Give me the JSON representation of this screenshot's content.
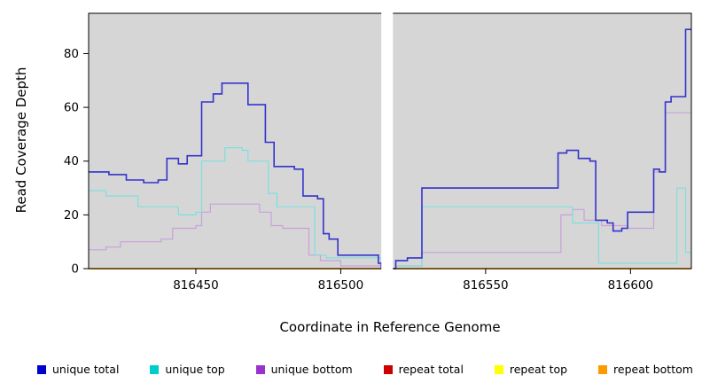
{
  "chart_data": {
    "type": "line",
    "subtype": "step-coverage-plot",
    "title": "",
    "xlabel": "Coordinate in Reference Genome",
    "ylabel": "Read Coverage Depth",
    "xlim": [
      816413,
      816621
    ],
    "ylim": [
      0,
      95
    ],
    "x_ticks": [
      816450,
      816500,
      816550,
      816600
    ],
    "y_ticks": [
      0,
      20,
      40,
      60,
      80
    ],
    "grid": false,
    "panel_bg": "#d6d6d6",
    "gap": {
      "x_start": 816514,
      "x_end": 816518
    },
    "series": [
      {
        "name": "repeat total",
        "color": "#cc0000",
        "width": 1.2,
        "steps": [
          [
            816413,
            0
          ]
        ]
      },
      {
        "name": "repeat top",
        "color": "#ffff00",
        "width": 1.2,
        "steps": [
          [
            816413,
            0
          ]
        ]
      },
      {
        "name": "repeat bottom",
        "color": "#ff9900",
        "width": 1.4,
        "steps": [
          [
            816413,
            0
          ]
        ]
      },
      {
        "name": "unique bottom",
        "color": "#c9a0dc",
        "width": 1.2,
        "steps": [
          [
            816413,
            7
          ],
          [
            816419,
            8
          ],
          [
            816424,
            10
          ],
          [
            816438,
            11
          ],
          [
            816442,
            15
          ],
          [
            816450,
            16
          ],
          [
            816452,
            21
          ],
          [
            816455,
            24
          ],
          [
            816472,
            21
          ],
          [
            816476,
            16
          ],
          [
            816480,
            15
          ],
          [
            816489,
            5
          ],
          [
            816493,
            3
          ],
          [
            816500,
            1
          ],
          [
            816514,
            0
          ],
          [
            816518,
            0
          ],
          [
            816519,
            1
          ],
          [
            816528,
            6
          ],
          [
            816576,
            20
          ],
          [
            816580,
            22
          ],
          [
            816584,
            18
          ],
          [
            816590,
            16
          ],
          [
            816599,
            15
          ],
          [
            816608,
            36
          ],
          [
            816612,
            58
          ]
        ]
      },
      {
        "name": "unique top",
        "color": "#7fdfdf",
        "width": 1.2,
        "steps": [
          [
            816413,
            29
          ],
          [
            816419,
            27
          ],
          [
            816430,
            23
          ],
          [
            816444,
            20
          ],
          [
            816450,
            21
          ],
          [
            816452,
            40
          ],
          [
            816460,
            45
          ],
          [
            816466,
            44
          ],
          [
            816468,
            40
          ],
          [
            816475,
            28
          ],
          [
            816478,
            23
          ],
          [
            816491,
            5
          ],
          [
            816495,
            4
          ],
          [
            816514,
            0
          ],
          [
            816518,
            0
          ],
          [
            816519,
            1
          ],
          [
            816528,
            23
          ],
          [
            816580,
            17
          ],
          [
            816589,
            2
          ],
          [
            816614,
            2
          ],
          [
            816616,
            30
          ],
          [
            816619,
            6
          ]
        ]
      },
      {
        "name": "unique total",
        "color": "#3333cc",
        "width": 1.6,
        "steps": [
          [
            816413,
            36
          ],
          [
            816420,
            35
          ],
          [
            816426,
            33
          ],
          [
            816432,
            32
          ],
          [
            816437,
            33
          ],
          [
            816440,
            41
          ],
          [
            816444,
            39
          ],
          [
            816447,
            42
          ],
          [
            816452,
            62
          ],
          [
            816456,
            65
          ],
          [
            816459,
            69
          ],
          [
            816468,
            61
          ],
          [
            816474,
            47
          ],
          [
            816477,
            38
          ],
          [
            816484,
            37
          ],
          [
            816487,
            27
          ],
          [
            816492,
            26
          ],
          [
            816494,
            13
          ],
          [
            816496,
            11
          ],
          [
            816499,
            5
          ],
          [
            816513,
            2
          ],
          [
            816514,
            0
          ],
          [
            816518,
            0
          ],
          [
            816519,
            3
          ],
          [
            816523,
            4
          ],
          [
            816528,
            30
          ],
          [
            816575,
            43
          ],
          [
            816578,
            44
          ],
          [
            816582,
            41
          ],
          [
            816586,
            40
          ],
          [
            816588,
            18
          ],
          [
            816592,
            17
          ],
          [
            816594,
            14
          ],
          [
            816597,
            15
          ],
          [
            816599,
            21
          ],
          [
            816608,
            37
          ],
          [
            816610,
            36
          ],
          [
            816612,
            62
          ],
          [
            816614,
            64
          ],
          [
            816618,
            64
          ],
          [
            816619,
            89
          ]
        ]
      }
    ],
    "legend": [
      {
        "label": "unique total",
        "color": "#0000cc"
      },
      {
        "label": "unique top",
        "color": "#00cccc"
      },
      {
        "label": "unique bottom",
        "color": "#9933cc"
      },
      {
        "label": "repeat total",
        "color": "#cc0000"
      },
      {
        "label": "repeat top",
        "color": "#ffff00"
      },
      {
        "label": "repeat bottom",
        "color": "#ff9900"
      }
    ],
    "legend_position": "bottom"
  }
}
